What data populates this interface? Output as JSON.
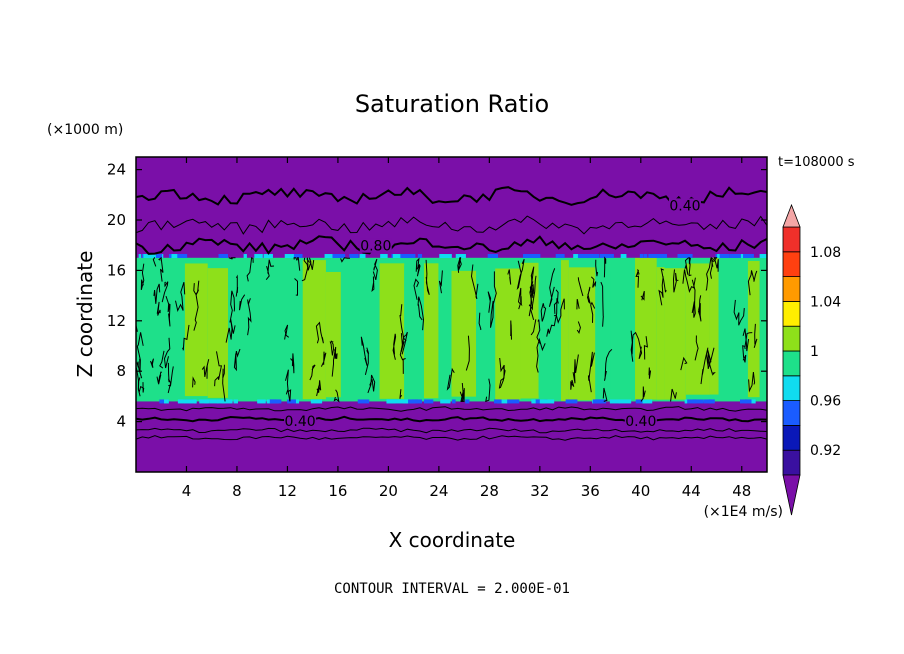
{
  "chart_data": {
    "type": "heatmap",
    "title": "Saturation Ratio",
    "xlabel": "X coordinate",
    "ylabel": "Z coordinate",
    "x_unit": "(×1E4 m/s)",
    "y_unit": "(×1000 m)",
    "time_label": "t=108000 s",
    "footer": "CONTOUR INTERVAL = 2.000E-01",
    "xlim": [
      0,
      50
    ],
    "ylim": [
      0,
      25
    ],
    "x_ticks": [
      4,
      8,
      12,
      16,
      20,
      24,
      28,
      32,
      36,
      40,
      44,
      48
    ],
    "y_ticks": [
      4,
      8,
      12,
      16,
      20,
      24
    ],
    "contour_labels": [
      {
        "text": "0.40",
        "x": 43.5,
        "y": 21.0
      },
      {
        "text": "0.80",
        "x": 19.0,
        "y": 17.8
      },
      {
        "text": "0.40",
        "x": 13.0,
        "y": 3.9
      },
      {
        "text": "0.40",
        "x": 40.0,
        "y": 3.9
      }
    ],
    "colorbar": {
      "levels": [
        {
          "color": "#7a0fa8"
        },
        {
          "color": "#3a10a0"
        },
        {
          "color": "#0a18b8"
        },
        {
          "color": "#1a5cff"
        },
        {
          "color": "#10dcf0"
        },
        {
          "color": "#1ee08a"
        },
        {
          "color": "#8ee01a"
        },
        {
          "color": "#ffee00"
        },
        {
          "color": "#ff9a00"
        },
        {
          "color": "#ff4010"
        },
        {
          "color": "#f0302a"
        },
        {
          "color": "#f4a6a6"
        }
      ],
      "labels": [
        "1.08",
        "1.04",
        "1",
        "0.96",
        "0.92"
      ],
      "label_values": [
        1.08,
        1.04,
        1.0,
        0.96,
        0.92
      ]
    },
    "fields": {
      "background_color": "#7a0fa8",
      "cloud_base_z": 5.6,
      "cloud_top_z": 17.0,
      "cloud_colors": [
        "#8ee01a",
        "#1ee08a",
        "#10dcf0",
        "#1a5cff"
      ],
      "contour_lines_z": [
        2.7,
        3.3,
        4.2,
        5.0,
        18.0,
        19.6,
        21.9
      ]
    }
  }
}
